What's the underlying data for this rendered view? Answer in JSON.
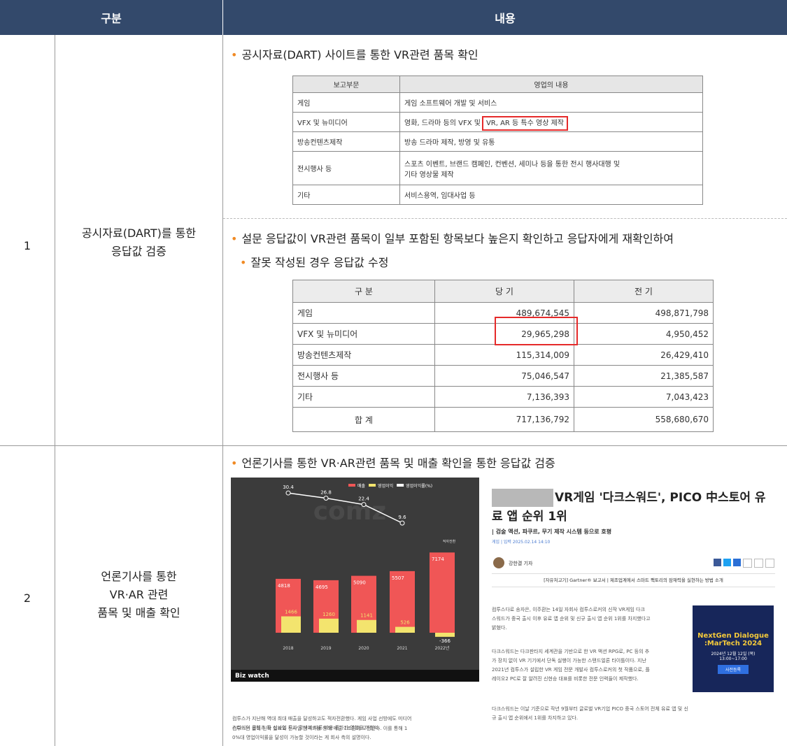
{
  "header": {
    "col1": "구분",
    "col2": "내용"
  },
  "rows": [
    {
      "no": "1",
      "category": [
        "공시자료(DART)를 통한",
        "응답값 검증"
      ],
      "bullet1": "공시자료(DART) 사이트를 통한 VR관련 품목 확인",
      "table1": {
        "header": [
          "보고부문",
          "영업의 내용"
        ],
        "rows": [
          [
            "게임",
            "게임 소프트웨어 개발 및 서비스"
          ],
          [
            "VFX 및 뉴미디어",
            "영화, 드라마 등의 VFX 및",
            "VR, AR 등 특수 영상 제작"
          ],
          [
            "방송컨텐츠제작",
            "방송 드라마 제작, 방영 및 유통"
          ],
          [
            "전시행사 등",
            "스포츠 이벤트, 브랜드 캠페인, 컨벤션, 세미나 등을 통한 전시 행사대행 및",
            "기타 영상물 제작"
          ],
          [
            "기타",
            "서비스용역, 임대사업 등"
          ]
        ]
      },
      "bullet2": [
        "설문 응답값이 VR관련 품목이 일부 포함된 항목보다 높은지 확인하고  응답자에게 재확인하여",
        "잘못 작성된 경우 응답값 수정"
      ],
      "table2": {
        "header": [
          "구 분",
          "당 기",
          "전 기"
        ],
        "rows": [
          [
            "게임",
            "489,674,545",
            "498,871,798"
          ],
          [
            "VFX 및 뉴미디어",
            "29,965,298",
            "4,950,452"
          ],
          [
            "방송컨텐츠제작",
            "115,314,009",
            "26,429,410"
          ],
          [
            "전시행사 등",
            "75,046,547",
            "21,385,587"
          ],
          [
            "기타",
            "7,136,393",
            "7,043,423"
          ],
          [
            "합 계",
            "717,136,792",
            "558,680,670"
          ]
        ]
      }
    },
    {
      "no": "2",
      "category": [
        "언론기사를  통한",
        "VR·AR 관련",
        "품목 및 매출 확인"
      ],
      "bullet1": "언론기사를 통한 VR·AR관련 품목 및 매출 확인을 통한 응답값 검증",
      "chart": {
        "type": "bar",
        "categories": [
          "2018",
          "2019",
          "2020",
          "2021",
          "2022년"
        ],
        "series": [
          {
            "name": "매출",
            "color": "#f05656",
            "values": [
              4818,
              4695,
              5090,
              5507,
              7174
            ]
          },
          {
            "name": "영업이익",
            "color": "#f3e46e",
            "values": [
              1466,
              1260,
              1141,
              526,
              -366
            ]
          },
          {
            "name": "영업이익률(%)",
            "color": "#ffffff",
            "values": [
              30.4,
              26.8,
              22.4,
              9.6,
              null
            ]
          }
        ],
        "annotation": "적자전환",
        "source": "Biz watch"
      },
      "chart_caption": [
        "컴투스가 지난해 역대 최대 매출을 달성하고도 적자전환했다. 게임 사업 선방에도 미디어",
        "스타디어 콘텐츠 등 신사업 투자 확대에 따른 비용 증가가 영향을 미쳤다.",
        "컴투스는 올해 신작 발표와 신사업 본격화를 통해 매출 1조원에 도전한다. 이를 통해 1",
        "0%대 영업이익률을 달성이 가능할 것이라는 게 회사 측의 설명이다."
      ],
      "article": {
        "title": [
          "VR게임 '다크스워드', PICO 中스토어 유",
          "료 앱 순위 1위"
        ],
        "subtitle": "| 검술 액션, 파쿠르, 무기 제작 시스템 등으로 호평",
        "date": "게임 | 입력 2025.02.14 14:10",
        "author": "강한결 기자",
        "banner": "[자유처고기] Gartner® 보고서 | 제조업계에서 스마트 팩토리의 잠재력을 실현하는 방법 소개",
        "paragraphs": [
          [
            "컴투스다로 송자은, 이주환는 14일 자회사 컴투스로커의 신작 VR게임 다크",
            "스워드가 중국 출시 이후 유료 앱 순위 및 신규 출시 앱 순위 1위를 차지했다고",
            "밝혔다."
          ],
          [
            "다크스워드는 다크판타지 세계관을 기반으로 한 VR 액션 RPG로, PC 등의 추",
            "가 장치 없이 VR 기기에서 단독 실행이 가능한 스탠드얼론 타이틀이다. 지난",
            "2021년 컴투스가 설립한 VR 게임 전문 개발사 컴투스로커의 첫 작품으로, 플",
            "레이오2 PC로 잘 알려진 신현승 대표를 비롯한 전문 인력들이 제작했다."
          ],
          [
            "다크스워드는 이날 기준으로 작년 9월부터 글로벌 VR기업 PICO 중국 스토어 전체 유료 앱 및 신",
            "규 출시 앱 순위에서 1위를 차지하고 있다."
          ]
        ],
        "ad": [
          "NextGen Dialogue",
          ":MarTech 2024",
          "2024년 12월 12일 (목)",
          "13:00~17:00",
          "사전등록"
        ]
      }
    }
  ]
}
